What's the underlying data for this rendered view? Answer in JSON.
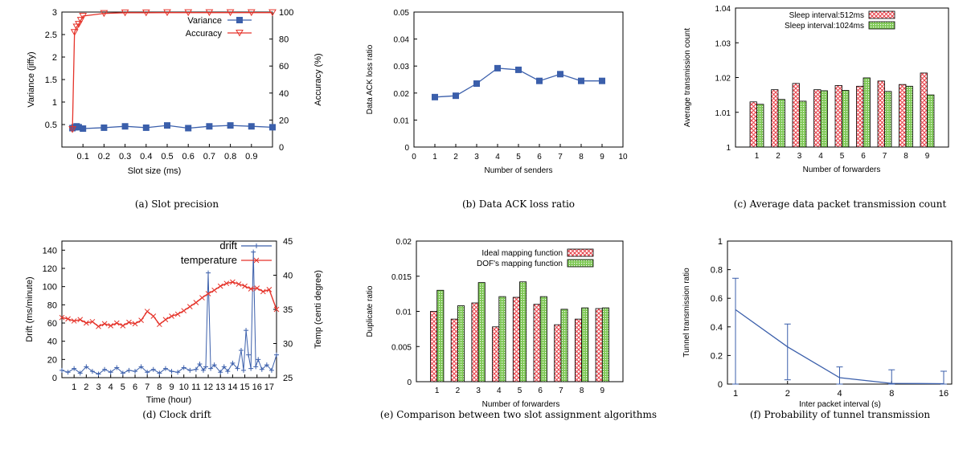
{
  "colors": {
    "blue": "#3b5fab",
    "red": "#e5332a",
    "green": "#7fc856",
    "red_hatch": "#e8434b",
    "black": "#000000"
  },
  "chart_data": [
    {
      "id": "a",
      "type": "line",
      "caption": "(a) Slot precision",
      "xlabel": "Slot size (ms)",
      "ylabel": "Variance (jiffy)",
      "y2label": "Accuracy (%)",
      "xlim": [
        0,
        1.0
      ],
      "ylim": [
        0,
        3
      ],
      "y2lim": [
        0,
        100
      ],
      "xticks": [
        "0.1",
        "0.2",
        "0.3",
        "0.4",
        "0.5",
        "0.6",
        "0.7",
        "0.8",
        "0.9"
      ],
      "xtick_values": [
        0.1,
        0.2,
        0.3,
        0.4,
        0.5,
        0.6,
        0.7,
        0.8,
        0.9
      ],
      "yticks": [
        "0.5",
        "1",
        "1.5",
        "2",
        "2.5",
        "3"
      ],
      "ytick_values": [
        0.5,
        1,
        1.5,
        2,
        2.5,
        3
      ],
      "y2ticks": [
        "0",
        "20",
        "40",
        "60",
        "80",
        "100"
      ],
      "y2tick_values": [
        0,
        20,
        40,
        60,
        80,
        100
      ],
      "legend_position": "top-right",
      "series": [
        {
          "name": "Variance",
          "axis": "left",
          "marker": "square",
          "x": [
            0.05,
            0.06,
            0.07,
            0.08,
            0.1,
            0.2,
            0.3,
            0.4,
            0.5,
            0.6,
            0.7,
            0.8,
            0.9,
            1.0
          ],
          "y": [
            0.42,
            0.44,
            0.46,
            0.44,
            0.41,
            0.43,
            0.46,
            0.43,
            0.48,
            0.42,
            0.46,
            0.48,
            0.46,
            0.44
          ]
        },
        {
          "name": "Accuracy",
          "axis": "right",
          "marker": "triangle-down",
          "x": [
            0.05,
            0.06,
            0.07,
            0.08,
            0.09,
            0.1,
            0.2,
            0.3,
            0.4,
            0.5,
            0.6,
            0.7,
            0.8,
            0.9,
            1.0
          ],
          "y": [
            13,
            85,
            89,
            91,
            94,
            97,
            99,
            99.5,
            99.5,
            99.6,
            99.6,
            99.6,
            99.6,
            99.6,
            99.6
          ]
        }
      ]
    },
    {
      "id": "b",
      "type": "line",
      "caption": "(b) Data ACK loss ratio",
      "xlabel": "Number of senders",
      "ylabel": "Data ACK loss ratio",
      "xlim": [
        0,
        10
      ],
      "ylim": [
        0,
        0.05
      ],
      "xticks": [
        "0",
        "1",
        "2",
        "3",
        "4",
        "5",
        "6",
        "7",
        "8",
        "9",
        "10"
      ],
      "xtick_values": [
        0,
        1,
        2,
        3,
        4,
        5,
        6,
        7,
        8,
        9,
        10
      ],
      "yticks": [
        "0",
        "0.01",
        "0.02",
        "0.03",
        "0.04",
        "0.05"
      ],
      "ytick_values": [
        0,
        0.01,
        0.02,
        0.03,
        0.04,
        0.05
      ],
      "series": [
        {
          "marker": "square",
          "x": [
            1,
            2,
            3,
            4,
            5,
            6,
            7,
            8,
            9
          ],
          "y": [
            0.0185,
            0.019,
            0.0235,
            0.0292,
            0.0286,
            0.0245,
            0.027,
            0.0245,
            0.0245
          ]
        }
      ]
    },
    {
      "id": "c",
      "type": "bar",
      "caption": "(c) Average data packet transmission count",
      "xlabel": "Number of forwarders",
      "ylabel": "Average transmission count",
      "categories": [
        "1",
        "2",
        "3",
        "4",
        "5",
        "6",
        "7",
        "8",
        "9"
      ],
      "ylim": [
        1,
        1.04
      ],
      "yticks": [
        "1",
        "1.01",
        "1.02",
        "1.03",
        "1.04"
      ],
      "ytick_values": [
        1,
        1.01,
        1.02,
        1.03,
        1.04
      ],
      "legend_position": "top-center",
      "series": [
        {
          "name": "Sleep interval:512ms",
          "pattern": "red-crosshatch",
          "values": [
            1.013,
            1.0165,
            1.0183,
            1.0165,
            1.0177,
            1.0175,
            1.019,
            1.018,
            1.0213
          ]
        },
        {
          "name": "Sleep interval:1024ms",
          "pattern": "green-dots",
          "values": [
            1.0123,
            1.0137,
            1.0132,
            1.0162,
            1.0163,
            1.0199,
            1.016,
            1.0175,
            1.015
          ]
        }
      ]
    },
    {
      "id": "d",
      "type": "line",
      "caption": "(d) Clock drift",
      "xlabel": "Time (hour)",
      "ylabel": "Drift (ms/minute)",
      "y2label": "Temp (centi degree)",
      "xlim": [
        0,
        17.6
      ],
      "ylim": [
        0,
        150
      ],
      "y2lim": [
        25,
        45
      ],
      "xticks": [
        "1",
        "2",
        "3",
        "4",
        "5",
        "6",
        "7",
        "8",
        "9",
        "10",
        "11",
        "12",
        "13",
        "14",
        "15",
        "16",
        "17"
      ],
      "xtick_values": [
        1,
        2,
        3,
        4,
        5,
        6,
        7,
        8,
        9,
        10,
        11,
        12,
        13,
        14,
        15,
        16,
        17
      ],
      "yticks": [
        "0",
        "20",
        "40",
        "60",
        "80",
        "100",
        "120",
        "140"
      ],
      "ytick_values": [
        0,
        20,
        40,
        60,
        80,
        100,
        120,
        140
      ],
      "y2ticks": [
        "25",
        "30",
        "35",
        "40",
        "45"
      ],
      "y2tick_values": [
        25,
        30,
        35,
        40,
        45
      ],
      "legend_position": "top-right",
      "series": [
        {
          "name": "drift",
          "axis": "left",
          "marker": "plus",
          "x": [
            0,
            0.5,
            1,
            1.5,
            2,
            2.5,
            3,
            3.5,
            4,
            4.5,
            5,
            5.5,
            6,
            6.5,
            7,
            7.5,
            8,
            8.5,
            9,
            9.5,
            10,
            10.5,
            11,
            11.3,
            11.6,
            11.8,
            12,
            12.2,
            12.5,
            13,
            13.3,
            13.6,
            14,
            14.4,
            14.7,
            14.9,
            15.1,
            15.3,
            15.5,
            15.7,
            15.9,
            16.1,
            16.4,
            16.8,
            17.2,
            17.6
          ],
          "y": [
            8,
            6,
            10,
            5,
            12,
            7,
            4,
            9,
            6,
            11,
            5,
            8,
            7,
            12,
            6,
            9,
            5,
            10,
            7,
            6,
            11,
            8,
            9,
            15,
            8,
            12,
            115,
            10,
            14,
            6,
            12,
            7,
            16,
            10,
            30,
            8,
            52,
            25,
            10,
            138,
            12,
            20,
            9,
            14,
            8,
            25
          ]
        },
        {
          "name": "temperature",
          "axis": "right",
          "marker": "cross",
          "x": [
            0,
            0.5,
            1,
            1.5,
            2,
            2.5,
            3,
            3.5,
            4,
            4.5,
            5,
            5.5,
            6,
            6.5,
            7,
            7.5,
            8,
            8.5,
            9,
            9.5,
            10,
            10.5,
            11,
            11.5,
            12,
            12.5,
            13,
            13.5,
            14,
            14.5,
            15,
            15.5,
            16,
            16.5,
            17,
            17.6
          ],
          "y": [
            33.8,
            33.6,
            33.3,
            33.5,
            33.0,
            33.2,
            32.5,
            32.9,
            32.6,
            33.0,
            32.6,
            33.1,
            32.9,
            33.4,
            34.7,
            34.0,
            32.8,
            33.5,
            34.0,
            34.3,
            34.8,
            35.4,
            36.0,
            36.7,
            37.3,
            37.8,
            38.4,
            38.8,
            39.0,
            38.7,
            38.4,
            38.0,
            38.1,
            37.6,
            37.9,
            35.0
          ]
        }
      ]
    },
    {
      "id": "e",
      "type": "bar",
      "caption": "(e) Comparison between two slot assignment algorithms",
      "xlabel": "Number of forwarders",
      "ylabel": "Duplicate ratio",
      "categories": [
        "1",
        "2",
        "3",
        "4",
        "5",
        "6",
        "7",
        "8",
        "9"
      ],
      "ylim": [
        0,
        0.02
      ],
      "yticks": [
        "0",
        "0.005",
        "0.01",
        "0.015",
        "0.02"
      ],
      "ytick_values": [
        0,
        0.005,
        0.01,
        0.015,
        0.02
      ],
      "legend_position": "top-right",
      "series": [
        {
          "name": "Ideal mapping function",
          "pattern": "red-crosshatch",
          "values": [
            0.01,
            0.0089,
            0.0112,
            0.0078,
            0.012,
            0.011,
            0.0081,
            0.0089,
            0.0104
          ]
        },
        {
          "name": "DOF's mapping function",
          "pattern": "green-dots",
          "values": [
            0.013,
            0.0108,
            0.0141,
            0.0121,
            0.0142,
            0.0121,
            0.0103,
            0.0105,
            0.0105
          ]
        }
      ]
    },
    {
      "id": "f",
      "type": "line",
      "caption": "(f) Probability of tunnel transmission",
      "xlabel": "Inter packet interval (s)",
      "ylabel": "Tunnel transmission ratio",
      "xscale": "log2",
      "xlim": [
        1,
        16
      ],
      "ylim": [
        0,
        1
      ],
      "xticks": [
        "1",
        "2",
        "4",
        "8",
        "16"
      ],
      "xtick_values": [
        1,
        2,
        4,
        8,
        16
      ],
      "yticks": [
        "0",
        "0.2",
        "0.4",
        "0.6",
        "0.8",
        "1"
      ],
      "ytick_values": [
        0,
        0.2,
        0.4,
        0.6,
        0.8,
        1
      ],
      "series": [
        {
          "x": [
            1,
            2,
            4,
            8,
            16
          ],
          "y": [
            0.52,
            0.26,
            0.045,
            0.005,
            0.003
          ],
          "err_low": [
            0.0,
            0.03,
            0.0,
            0.0,
            0.0
          ],
          "err_high": [
            0.74,
            0.42,
            0.12,
            0.1,
            0.09
          ]
        }
      ]
    }
  ]
}
